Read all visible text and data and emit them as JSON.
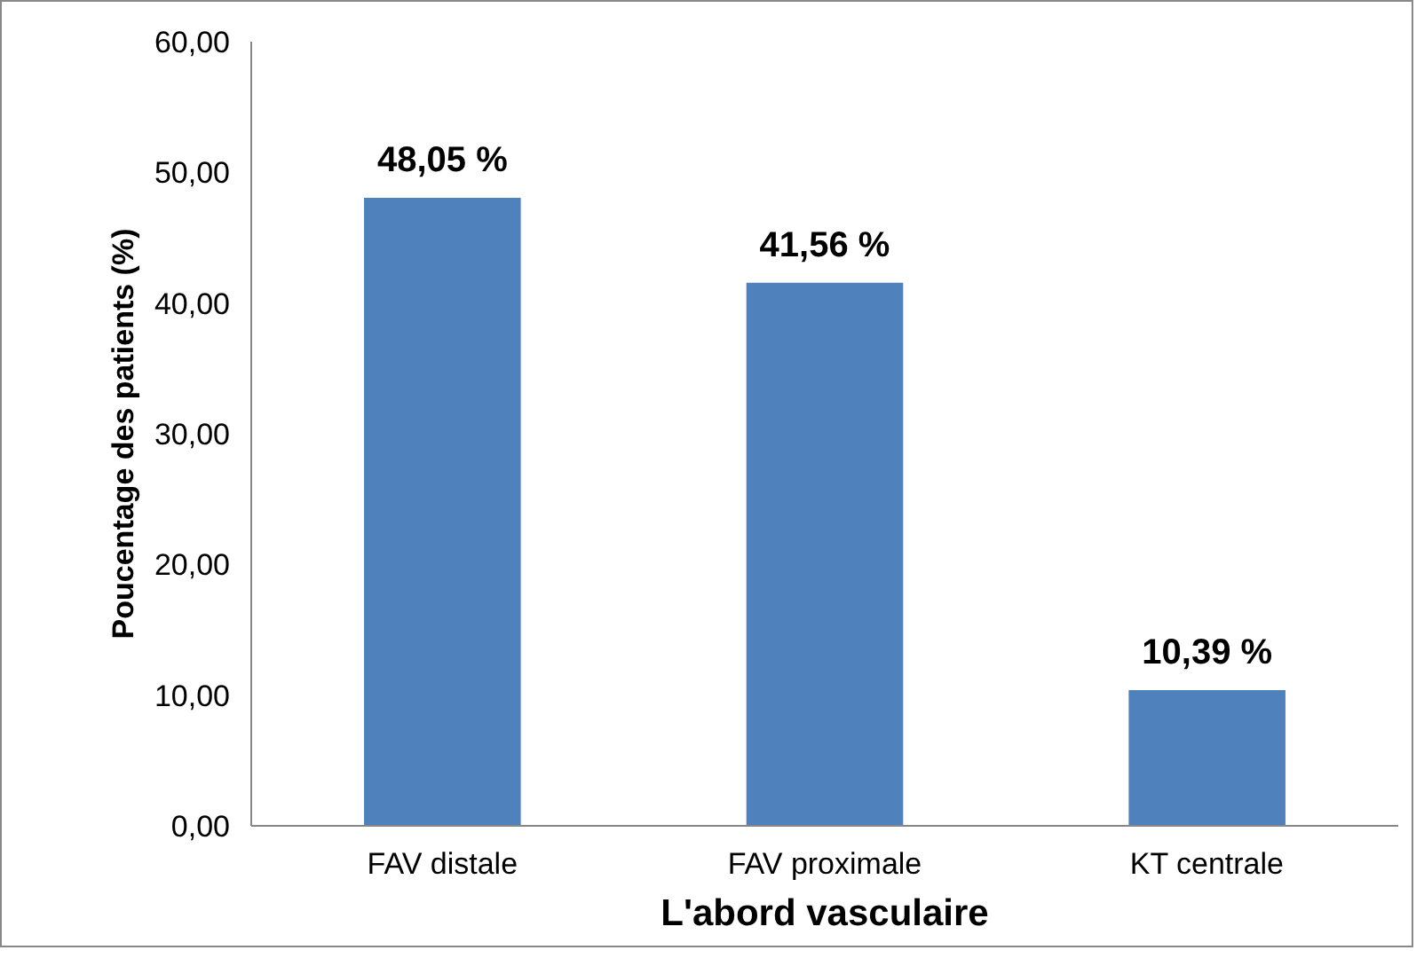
{
  "chart_data": {
    "type": "bar",
    "xlabel": "L'abord vasculaire",
    "ylabel": "Poucentage des patients (%)",
    "categories": [
      "FAV distale",
      "FAV proximale",
      "KT centrale"
    ],
    "values": [
      48.05,
      41.56,
      10.39
    ],
    "value_labels": [
      "48,05 %",
      "41,56 %",
      "10,39 %"
    ],
    "color": "#4f81bd",
    "ylim": [
      0,
      60
    ],
    "yticks": [
      {
        "value": 0,
        "label": "0,00"
      },
      {
        "value": 10,
        "label": "10,00"
      },
      {
        "value": 20,
        "label": "20,00"
      },
      {
        "value": 30,
        "label": "30,00"
      },
      {
        "value": 40,
        "label": "40,00"
      },
      {
        "value": 50,
        "label": "50,00"
      },
      {
        "value": 60,
        "label": "60,00"
      }
    ],
    "grid": false
  }
}
